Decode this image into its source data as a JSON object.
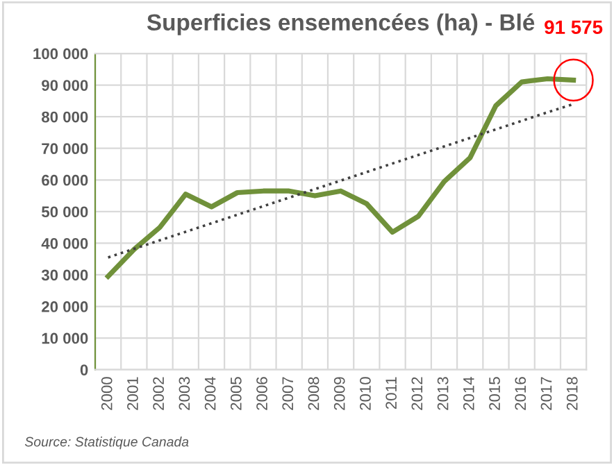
{
  "chart_data": {
    "type": "line",
    "title": "Superficies ensemencées (ha) - Blé",
    "categories": [
      "2000",
      "2001",
      "2002",
      "2003",
      "2004",
      "2005",
      "2006",
      "2007",
      "2008",
      "2009",
      "2010",
      "2011",
      "2012",
      "2013",
      "2014",
      "2015",
      "2016",
      "2017",
      "2018"
    ],
    "series": [
      {
        "color": "#70913a",
        "values": [
          29500,
          38000,
          45000,
          55500,
          51500,
          56000,
          56500,
          56500,
          55000,
          56500,
          52500,
          43500,
          48500,
          59500,
          67000,
          83500,
          91000,
          92000,
          91575
        ]
      },
      {
        "type": "line",
        "color": "#404040",
        "line_style": "dotted",
        "values": [
          35500,
          38200,
          40900,
          43600,
          46300,
          49000,
          51700,
          54400,
          57100,
          59800,
          62500,
          65200,
          67900,
          70600,
          73300,
          76000,
          78700,
          81400,
          84000
        ]
      }
    ],
    "ylim": [
      0,
      100000
    ],
    "yticks": [
      {
        "value": 0,
        "label": "0"
      },
      {
        "value": 10000,
        "label": "10 000"
      },
      {
        "value": 20000,
        "label": "20 000"
      },
      {
        "value": 30000,
        "label": "30 000"
      },
      {
        "value": 40000,
        "label": "40 000"
      },
      {
        "value": 50000,
        "label": "50 000"
      },
      {
        "value": 60000,
        "label": "60 000"
      },
      {
        "value": 70000,
        "label": "70 000"
      },
      {
        "value": 80000,
        "label": "80 000"
      },
      {
        "value": 90000,
        "label": "90 000"
      },
      {
        "value": 100000,
        "label": "100 000"
      }
    ],
    "grid": true,
    "annotations": [
      {
        "text": "91 575",
        "x": "2018",
        "y": 91575
      },
      "Source: Statistique Canada"
    ]
  }
}
